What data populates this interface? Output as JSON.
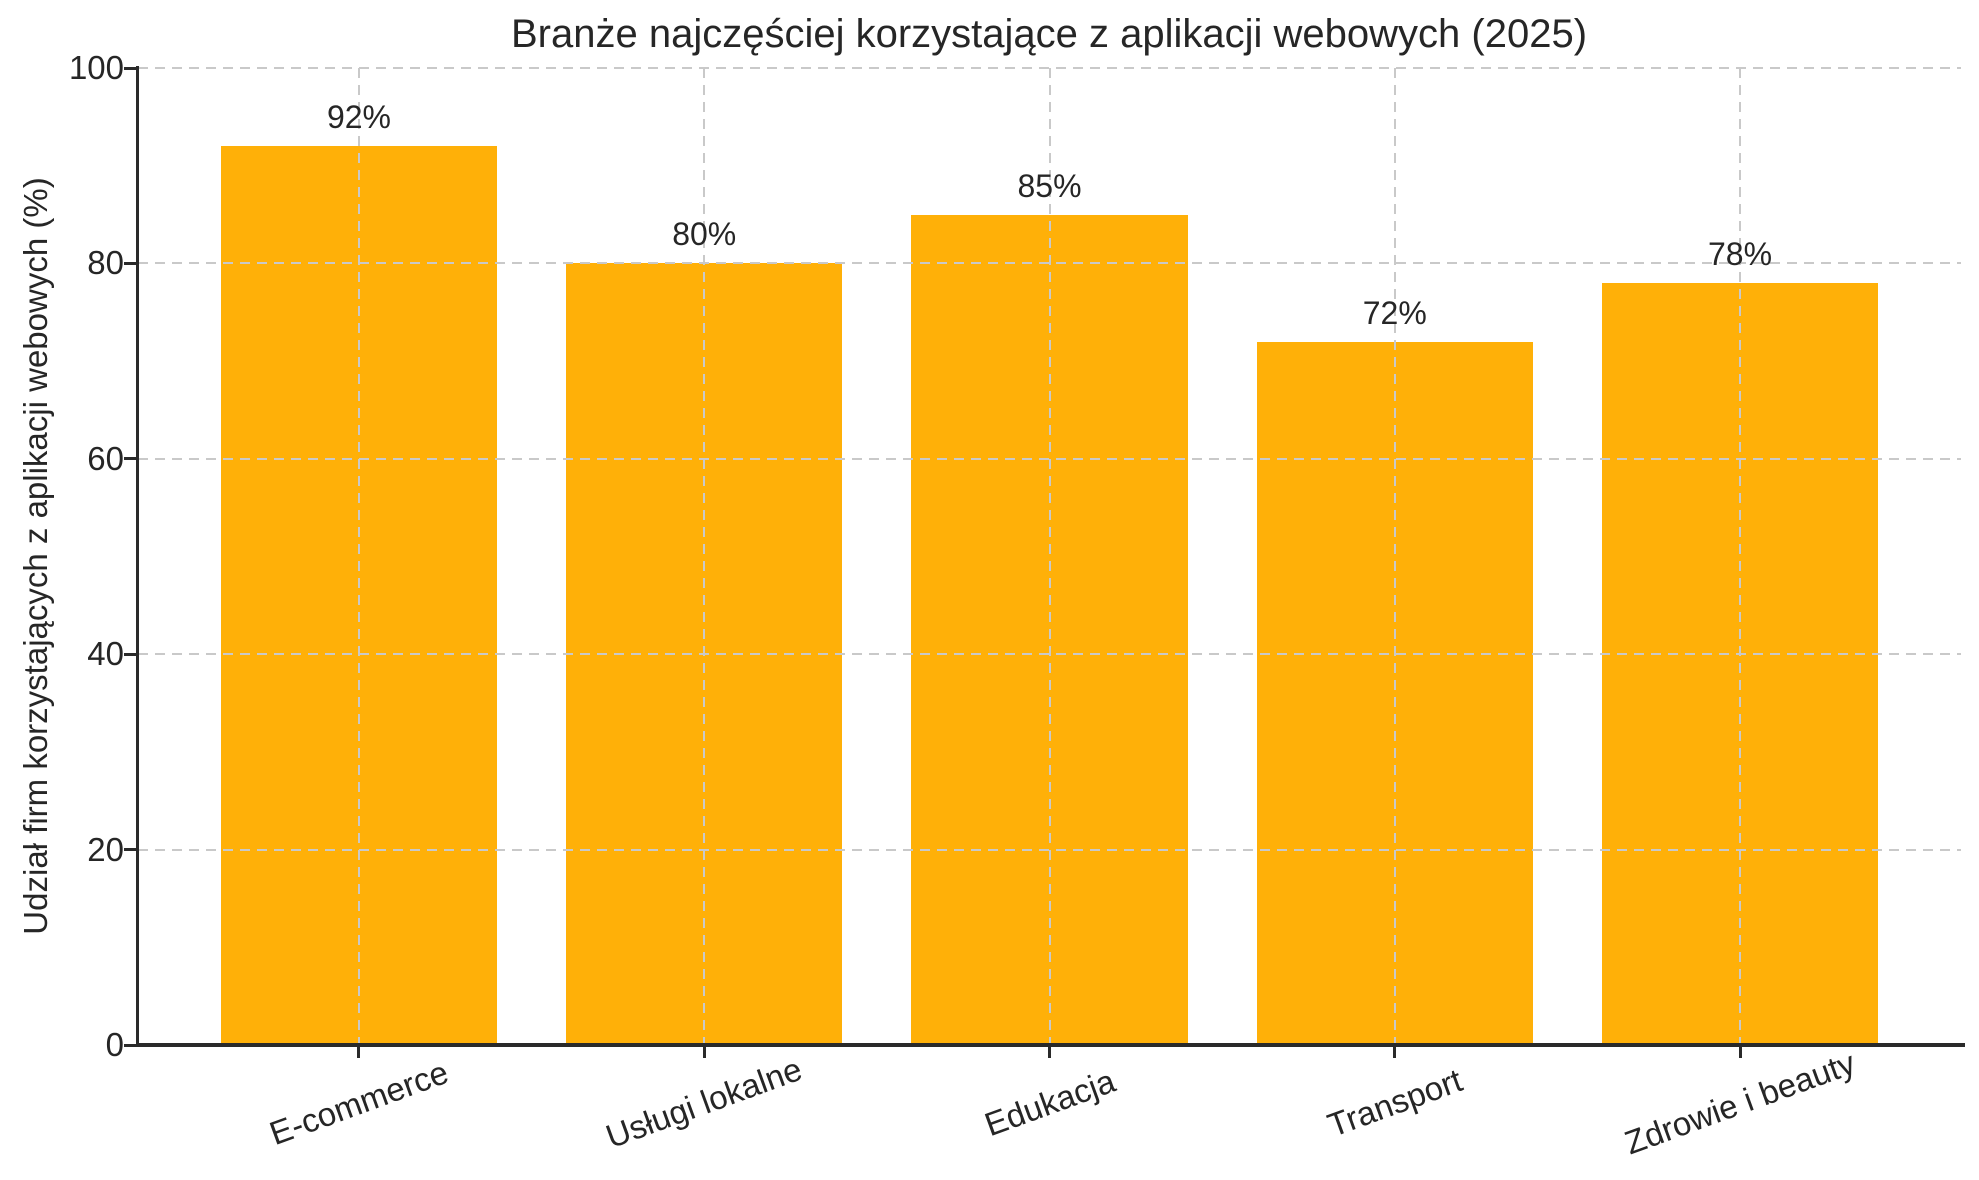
{
  "chart_data": {
    "type": "bar",
    "title": "Branże najczęściej korzystające z aplikacji webowych (2025)",
    "ylabel": "Udział firm korzystających z aplikacji webowych (%)",
    "xlabel": "",
    "categories": [
      "E-commerce",
      "Usługi lokalne",
      "Edukacja",
      "Transport",
      "Zdrowie i beauty"
    ],
    "values": [
      92,
      80,
      85,
      72,
      78
    ],
    "bar_labels": [
      "92%",
      "80%",
      "85%",
      "72%",
      "78%"
    ],
    "yticks": [
      0,
      20,
      40,
      60,
      80,
      100
    ],
    "ylim": [
      0,
      100
    ],
    "grid": "dashed, horizontal at yticks and vertical at bar centers, drawn above bars",
    "legend": "none",
    "x_tick_rotation_deg": 20,
    "colors": {
      "bar": "#ffb008",
      "grid": "#c9c9c9",
      "spine": "#2a2a2a",
      "text": "#262626",
      "background": "#ffffff"
    }
  }
}
